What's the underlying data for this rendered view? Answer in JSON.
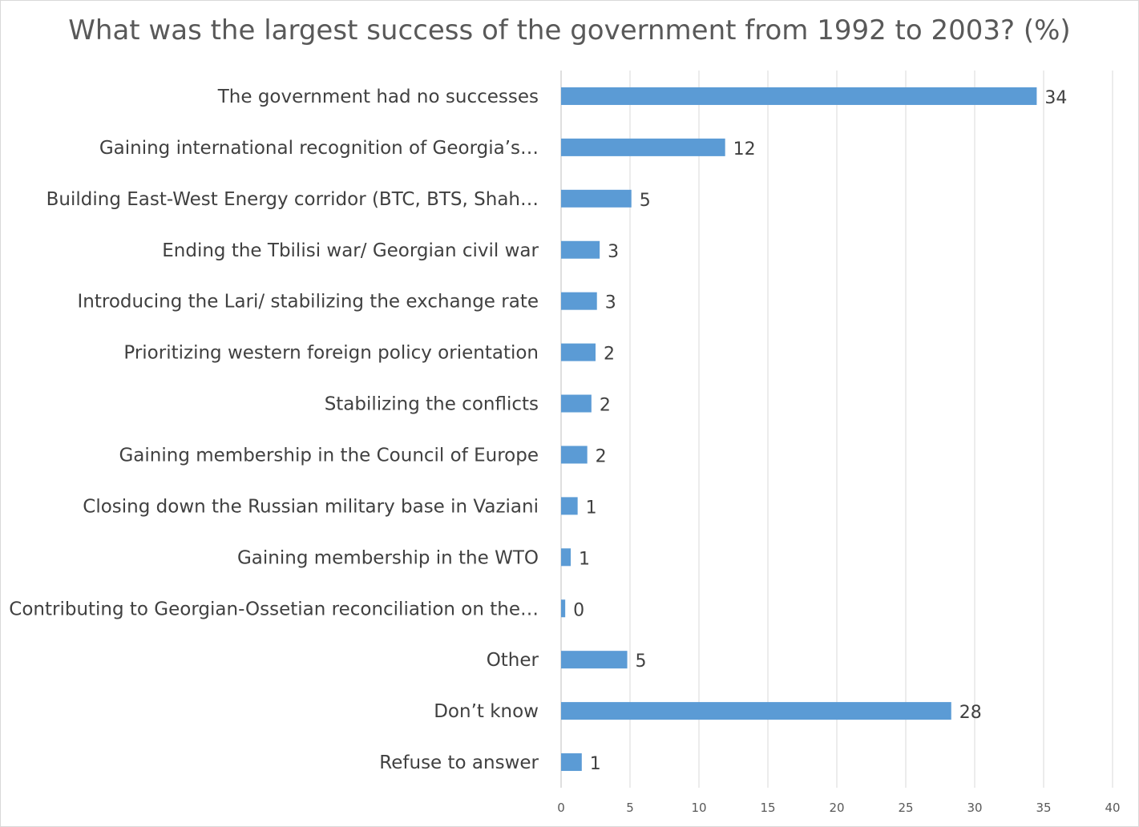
{
  "chart_data": {
    "type": "bar",
    "orientation": "horizontal",
    "title": "What was the largest success of the government from 1992 to 2003? (%)",
    "xlabel": "",
    "ylabel": "",
    "categories": [
      "The government had no successes",
      "Gaining international recognition of Georgia’s…",
      "Building East-West Energy corridor (BTC, BTS, Shah…",
      "Ending the Tbilisi war/ Georgian civil war",
      "Introducing the Lari/ stabilizing the exchange rate",
      "Prioritizing western foreign policy orientation",
      "Stabilizing the conflicts",
      "Gaining membership in the Council of Europe",
      "Closing down the Russian military base in Vaziani",
      "Gaining membership in the WTO",
      "Contributing to Georgian-Ossetian reconciliation on the…",
      "Other",
      "Don’t know",
      "Refuse to answer"
    ],
    "values": [
      34.5,
      11.9,
      5.1,
      2.8,
      2.6,
      2.5,
      2.2,
      1.9,
      1.2,
      0.7,
      0.3,
      4.8,
      28.3,
      1.5
    ],
    "value_labels": [
      "34",
      "12",
      "5",
      "3",
      "3",
      "2",
      "2",
      "2",
      "1",
      "1",
      "0",
      "5",
      "28",
      "1"
    ],
    "xlim": [
      0,
      40
    ],
    "xticks": [
      0,
      5,
      10,
      15,
      20,
      25,
      30,
      35,
      40
    ],
    "grid": true,
    "legend": "none",
    "bar_color": "#5b9bd5"
  }
}
